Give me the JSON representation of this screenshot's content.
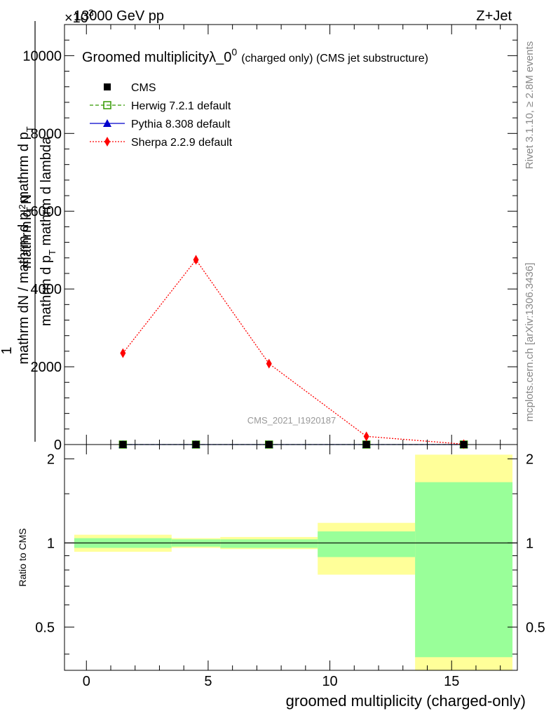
{
  "header": {
    "energy": "13000 GeV pp",
    "process": "Z+Jet",
    "exponent": "×10",
    "exponent_power": "3"
  },
  "chart_data": [
    {
      "type": "line",
      "panel": "main",
      "title": "Groomed multiplicityλ_0",
      "title_sup": "0",
      "title_suffix": "(charged only) (CMS jet substructure)",
      "ylabel_numerator": "mathrm d",
      "ylabel_numerator_sup": "2",
      "ylabel_numerator_n": "N",
      "ylabel_denominator": "mathrm d p",
      "ylabel_denominator_sub": "T",
      "ylabel_denominator_tail": " mathrm d lambda",
      "ylabel_prefix_num": "1",
      "ylabel_prefix_den": "mathrm dN / mathrm d p",
      "ylabel_prefix_den_sub": "T",
      "ylabel_prefix_den_tail": " mathrm d p",
      "ylabel_prefix_den_sub2": "T",
      "ylim": [
        0,
        10.8
      ],
      "y_unit_scale": "x10^3",
      "y_ticks": [
        0,
        2,
        4,
        6,
        8,
        10
      ],
      "y_tick_labels": [
        "0",
        "2000",
        "4000",
        "6000",
        "8000",
        "10000"
      ],
      "xlim": [
        -0.9,
        17.7
      ],
      "grid": false,
      "legend_position": "top-left",
      "series": [
        {
          "name": "CMS",
          "style": "marker-square-black",
          "x": [
            1.5,
            4.5,
            7.5,
            11.5,
            15.5
          ],
          "values": [
            0.0,
            0.0,
            0.0,
            0.0,
            0.0
          ]
        },
        {
          "name": "Herwig 7.2.1 default",
          "style": "green-dashed-open-square",
          "color": "#339900",
          "x": [
            1.5,
            4.5,
            7.5,
            11.5,
            15.5
          ],
          "values": [
            0.0,
            0.0,
            0.0,
            0.0,
            0.0
          ]
        },
        {
          "name": "Pythia 8.308 default",
          "style": "blue-solid-triangle",
          "color": "#0000cc",
          "x": [
            1.5,
            4.5,
            7.5,
            11.5,
            15.5
          ],
          "values": [
            0.0,
            0.0,
            0.0,
            0.0,
            0.0
          ]
        },
        {
          "name": "Sherpa 2.2.9 default",
          "style": "red-dotted-diamond",
          "color": "#ff0000",
          "x": [
            1.5,
            4.5,
            7.5,
            11.5,
            15.5
          ],
          "values": [
            2.35,
            4.75,
            2.08,
            0.21,
            0.01
          ]
        }
      ],
      "watermark": "CMS_2021_I1920187"
    },
    {
      "type": "area",
      "panel": "ratio",
      "ylabel": "Ratio to CMS",
      "xlabel": "groomed multiplicity (charged-only)",
      "ylim": [
        0.35,
        2.25
      ],
      "y_ticks": [
        0.5,
        1,
        2
      ],
      "y_tick_labels": [
        "0.5",
        "1",
        "2"
      ],
      "xlim": [
        -0.9,
        17.7
      ],
      "x_ticks": [
        0,
        5,
        10,
        15
      ],
      "x_tick_labels": [
        "0",
        "5",
        "10",
        "15"
      ],
      "reference_line": 1.0,
      "bins": [
        {
          "lo": -0.5,
          "hi": 3.5,
          "stat_lo": 0.96,
          "stat_hi": 1.04,
          "tot_lo": 0.93,
          "tot_hi": 1.07
        },
        {
          "lo": 3.5,
          "hi": 5.5,
          "stat_lo": 0.97,
          "stat_hi": 1.03,
          "tot_lo": 0.96,
          "tot_hi": 1.04
        },
        {
          "lo": 5.5,
          "hi": 9.5,
          "stat_lo": 0.96,
          "stat_hi": 1.03,
          "tot_lo": 0.95,
          "tot_hi": 1.05
        },
        {
          "lo": 9.5,
          "hi": 13.5,
          "stat_lo": 0.89,
          "stat_hi": 1.1,
          "tot_lo": 0.77,
          "tot_hi": 1.18
        },
        {
          "lo": 13.5,
          "hi": 17.5,
          "stat_lo": 0.39,
          "stat_hi": 1.65,
          "tot_lo": 0.35,
          "tot_hi": 2.07
        }
      ],
      "colors": {
        "stat": "#99ff99",
        "total": "#ffff99"
      }
    }
  ],
  "side_labels": {
    "rivet": "Rivet 3.1.10, ≥ 2.8M events",
    "mcplots": "mcplots.cern.ch [arXiv:1306.3436]"
  }
}
